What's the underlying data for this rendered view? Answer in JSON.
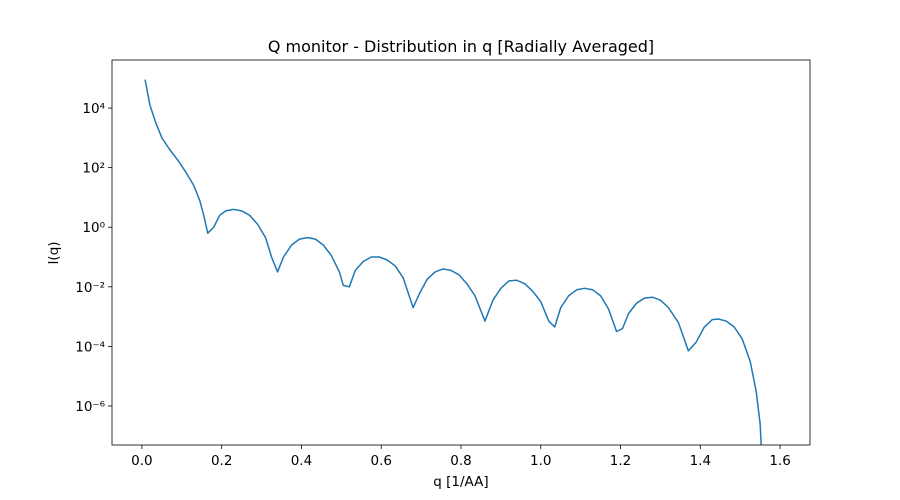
{
  "chart_data": {
    "type": "line",
    "title": "Q monitor - Distribution in q [Radially Averaged]",
    "x_label": "q [1/AA]",
    "y_label": "I(q)",
    "log_y": true,
    "color": "#1f77b4",
    "x": [
      0.008,
      0.02,
      0.035,
      0.05,
      0.07,
      0.09,
      0.11,
      0.13,
      0.145,
      0.155,
      0.165,
      0.18,
      0.195,
      0.21,
      0.23,
      0.25,
      0.27,
      0.29,
      0.31,
      0.325,
      0.34,
      0.355,
      0.375,
      0.395,
      0.415,
      0.435,
      0.455,
      0.475,
      0.495,
      0.505,
      0.52,
      0.535,
      0.555,
      0.575,
      0.595,
      0.615,
      0.635,
      0.655,
      0.68,
      0.695,
      0.715,
      0.735,
      0.755,
      0.775,
      0.795,
      0.815,
      0.835,
      0.86,
      0.88,
      0.9,
      0.92,
      0.94,
      0.96,
      0.98,
      1.0,
      1.02,
      1.035,
      1.05,
      1.07,
      1.09,
      1.11,
      1.13,
      1.15,
      1.17,
      1.19,
      1.205,
      1.22,
      1.24,
      1.26,
      1.28,
      1.3,
      1.32,
      1.345,
      1.37,
      1.39,
      1.41,
      1.43,
      1.445,
      1.465,
      1.485,
      1.505,
      1.525,
      1.54,
      1.55,
      1.553
    ],
    "values": [
      90000,
      12600,
      3160,
      1000,
      398,
      178,
      70.8,
      25.1,
      7.94,
      2.51,
      0.631,
      1.0,
      2.51,
      3.55,
      3.98,
      3.55,
      2.51,
      1.26,
      0.447,
      0.1,
      0.0316,
      0.1,
      0.251,
      0.398,
      0.447,
      0.398,
      0.251,
      0.112,
      0.0316,
      0.0112,
      0.01,
      0.0355,
      0.0708,
      0.1,
      0.1,
      0.0794,
      0.0501,
      0.02,
      0.002,
      0.00562,
      0.0178,
      0.0316,
      0.0398,
      0.0355,
      0.0251,
      0.0126,
      0.00501,
      0.000708,
      0.00355,
      0.00891,
      0.0158,
      0.0166,
      0.0126,
      0.00708,
      0.00316,
      0.000708,
      0.000447,
      0.002,
      0.00501,
      0.00794,
      0.00891,
      0.00794,
      0.00501,
      0.00178,
      0.000316,
      0.000398,
      0.00126,
      0.00282,
      0.00417,
      0.00447,
      0.00355,
      0.002,
      0.000631,
      7.08e-05,
      0.000141,
      0.000447,
      0.000794,
      0.000832,
      0.000708,
      0.000447,
      0.000178,
      3.16e-05,
      3.16e-06,
      2.51e-07,
      3.98e-08
    ],
    "xlim": [
      -0.075,
      1.675
    ],
    "ylim": [
      4.9e-08,
      410000
    ],
    "xticks": [
      {
        "value": 0,
        "label": "0.0"
      },
      0.2,
      0.4,
      0.6,
      0.8,
      {
        "value": 1,
        "label": "1.0"
      },
      1.2,
      1.4,
      1.6
    ],
    "yticks": [
      {
        "value": 1e-06,
        "label": "10⁻⁶"
      },
      {
        "value": 0.0001,
        "label": "10⁻⁴"
      },
      {
        "value": 0.01,
        "label": "10⁻²"
      },
      {
        "value": 1,
        "label": "10⁰"
      },
      {
        "value": 100,
        "label": "10²"
      },
      {
        "value": 10000,
        "label": "10⁴"
      }
    ]
  }
}
